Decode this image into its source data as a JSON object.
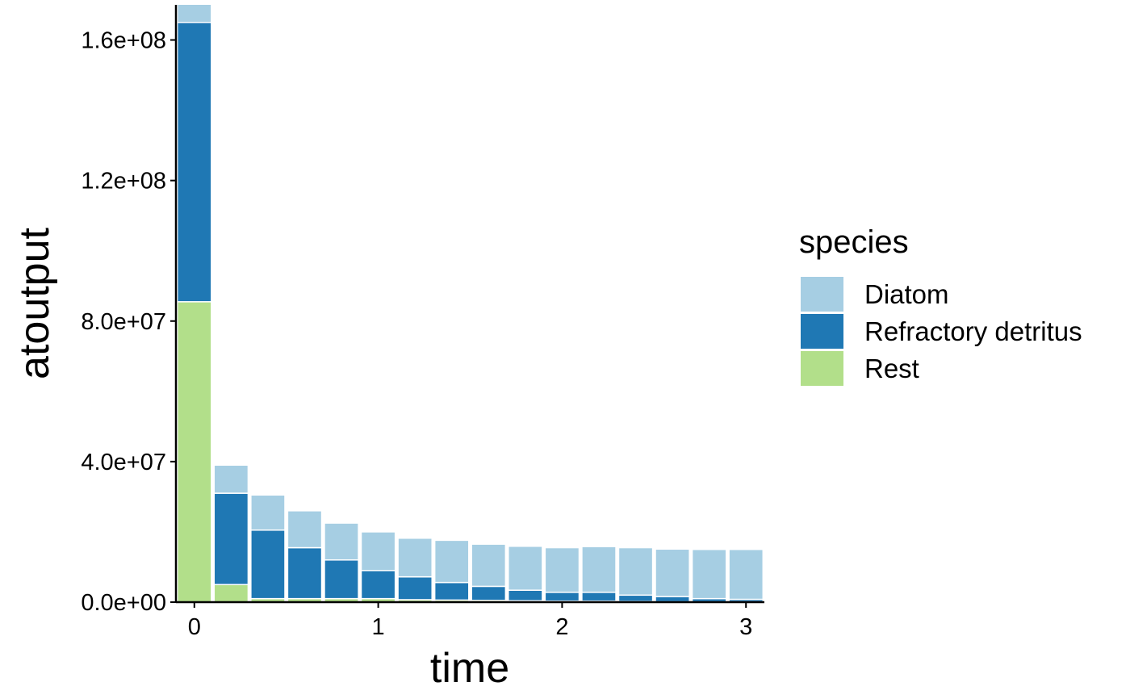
{
  "chart_data": {
    "type": "bar",
    "stacked": true,
    "xlabel": "time",
    "ylabel": "atoutput",
    "x": [
      0,
      0.2,
      0.4,
      0.6,
      0.8,
      1.0,
      1.2,
      1.4,
      1.6,
      1.8,
      2.0,
      2.2,
      2.4,
      2.6,
      2.8,
      3.0
    ],
    "series": [
      {
        "name": "Rest",
        "color": "#b2df8a",
        "values": [
          85500000,
          5000000,
          1000000,
          1000000,
          1000000,
          1000000,
          700000,
          600000,
          500000,
          400000,
          300000,
          300000,
          200000,
          100000,
          100000,
          100000
        ]
      },
      {
        "name": "Refractory detritus",
        "color": "#1f78b4",
        "values": [
          79500000,
          26000000,
          19500000,
          14500000,
          11000000,
          8000000,
          6500000,
          5000000,
          4000000,
          3000000,
          2500000,
          2500000,
          1800000,
          1500000,
          900000,
          700000
        ]
      },
      {
        "name": "Diatom",
        "color": "#a6cee3",
        "values": [
          6000000,
          8000000,
          10000000,
          10500000,
          10500000,
          11000000,
          11000000,
          12000000,
          12000000,
          12500000,
          12700000,
          13000000,
          13500000,
          13500000,
          14000000,
          14200000
        ]
      }
    ],
    "xlim": [
      -0.1,
      3.1
    ],
    "ylim": [
      0,
      170000000
    ],
    "yticks": [
      0,
      40000000,
      80000000,
      120000000,
      160000000
    ],
    "ytick_labels": [
      "0.0e+00",
      "4.0e+07",
      "8.0e+07",
      "1.2e+08",
      "1.6e+08"
    ],
    "xticks": [
      0,
      1,
      2,
      3
    ],
    "xtick_labels": [
      "0",
      "1",
      "2",
      "3"
    ],
    "bar_width": 0.185,
    "grid": false,
    "legend": {
      "title": "species",
      "placement": "right",
      "entries": [
        {
          "label": "Diatom",
          "color": "#a6cee3"
        },
        {
          "label": "Refractory detritus",
          "color": "#1f78b4"
        },
        {
          "label": "Rest",
          "color": "#b2df8a"
        }
      ]
    }
  }
}
